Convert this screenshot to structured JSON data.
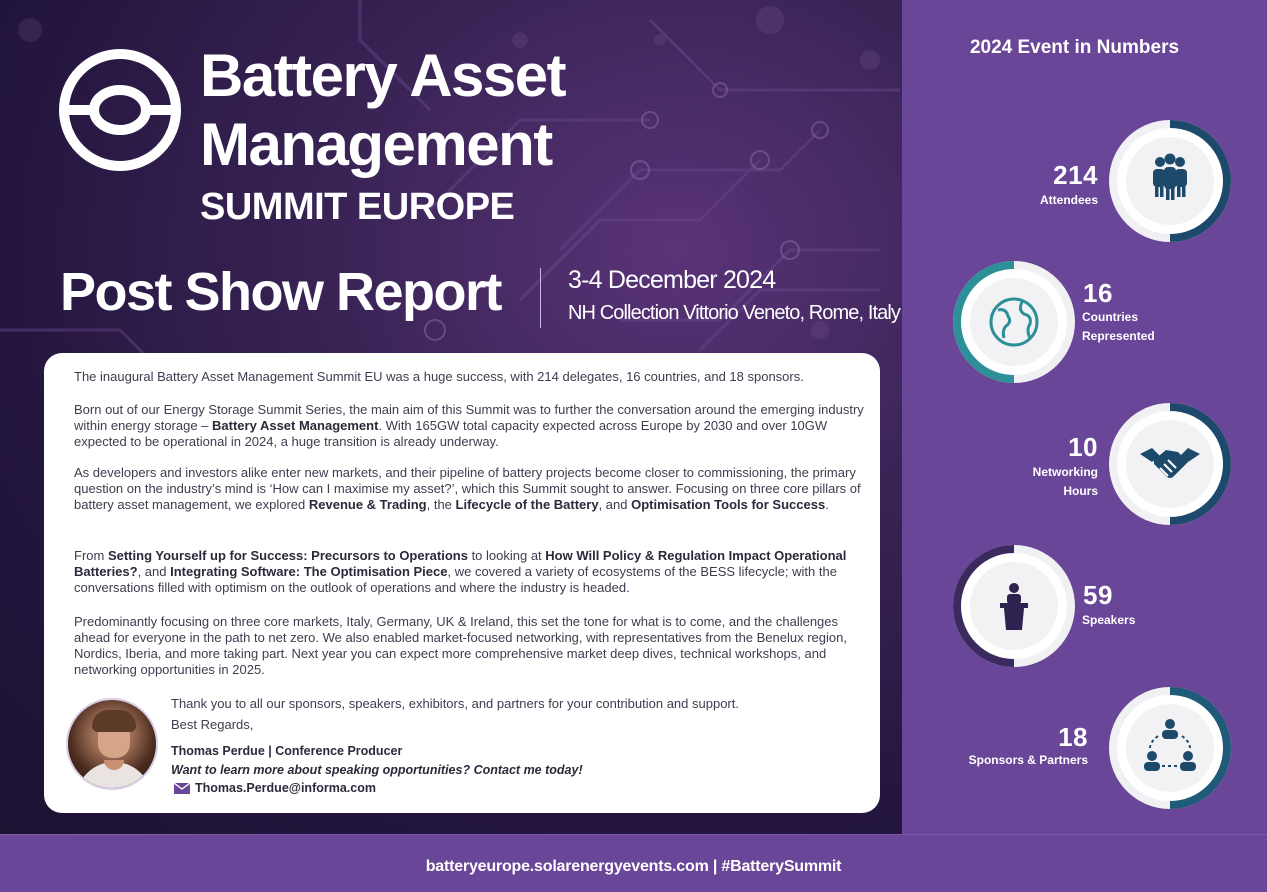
{
  "header": {
    "title_line1": "Battery Asset",
    "title_line2": "Management",
    "title_line3": "SUMMIT EUROPE",
    "report_title": "Post Show Report",
    "event_date": "3-4 December 2024",
    "event_venue": "NH Collection Vittorio Veneto, Rome, Italy"
  },
  "intro": {
    "p1": "The inaugural Battery Asset Management Summit EU was a huge success, with 214 delegates, 16 countries, and 18 sponsors.",
    "p2_a": "Born out of our Energy Storage Summit Series, the main aim of this Summit was to further the conversation around the emerging industry within energy storage – ",
    "p2_b": "Battery Asset Management",
    "p2_c": ". With 165GW total capacity expected across Europe by 2030 and over 10GW expected to be operational in 2024, a huge transition is already underway.",
    "p3_a": "As developers and investors alike enter new markets, and their pipeline of battery projects become closer to commissioning, the primary question on the industry’s mind is ‘How can I maximise my asset?’, which this Summit sought to answer. Focusing on three core pillars of battery asset management, we explored ",
    "p3_b": "Revenue & Trading",
    "p3_c": ", the ",
    "p3_d": "Lifecycle of the Battery",
    "p3_e": ", and ",
    "p3_f": "Optimisation Tools for Success",
    "p3_g": ".",
    "p4_a": "From ",
    "p4_b": "Setting Yourself up for Success: Precursors to Operations",
    "p4_c": " to looking at ",
    "p4_d": "How Will Policy & Regulation Impact Operational Batteries?",
    "p4_e": ", and ",
    "p4_f": "Integrating Software: The Optimisation Piece",
    "p4_g": ", we covered a variety of ecosystems of the BESS lifecycle; with the conversations filled with optimism on the outlook of operations and where the industry is headed.",
    "p5": "Predominantly focusing on three core markets, Italy, Germany, UK & Ireland, this set the tone for what is to come, and the challenges ahead for everyone in the path to net zero. We also enabled market-focused networking, with representatives from the Benelux region, Nordics, Iberia, and more taking part. Next year you can expect more comprehensive market deep dives, technical workshops, and networking opportunities in 2025."
  },
  "signature": {
    "thanks": "Thank you to all our sponsors, speakers, exhibitors, and partners for your contribution and support.",
    "regards": "Best Regards,",
    "name": "Thomas Perdue | Conference Producer",
    "cta": "Want to learn more about speaking opportunities? Contact me today!",
    "email": "Thomas.Perdue@informa.com"
  },
  "stats": {
    "heading": "2024 Event in Numbers",
    "items": [
      {
        "value": "214",
        "label": "Attendees",
        "icon": "people-group-icon",
        "ring_color": "#1d4a6b"
      },
      {
        "value": "16",
        "label_1": "Countries",
        "label_2": "Represented",
        "icon": "globe-icon",
        "ring_color": "#2d8f97"
      },
      {
        "value": "10",
        "label_1": "Networking",
        "label_2": "Hours",
        "icon": "handshake-icon",
        "ring_color": "#1d4a6b"
      },
      {
        "value": "59",
        "label": "Speakers",
        "icon": "speaker-podium-icon",
        "ring_color": "#3a2a5e"
      },
      {
        "value": "18",
        "label": "Sponsors & Partners",
        "icon": "network-people-icon",
        "ring_color": "#1f5a78"
      }
    ]
  },
  "footer": {
    "website": "batteryeurope.solarenergyevents.com",
    "separator": "|",
    "hashtag": "#BatterySummit"
  },
  "colors": {
    "panel_purple": "#6a4698",
    "dark_teal": "#1d4a6b",
    "teal": "#2d8f97",
    "dark_purple": "#3a2a5e"
  }
}
